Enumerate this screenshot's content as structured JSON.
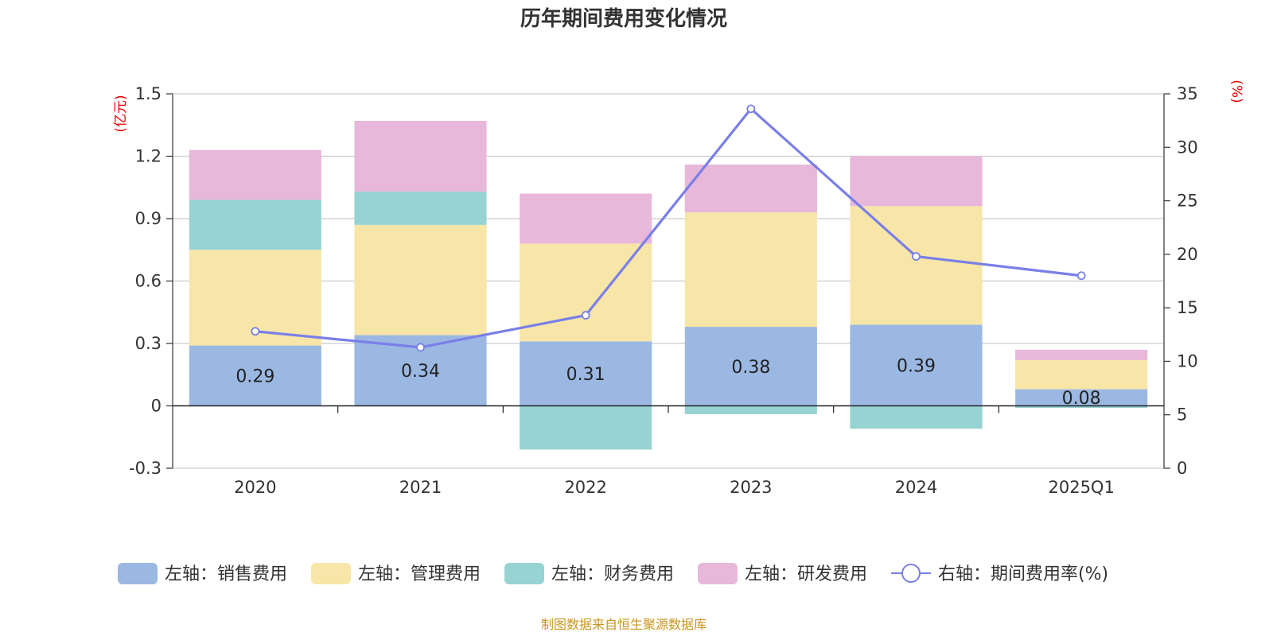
{
  "chart_data": {
    "type": "bar",
    "title": "历年期间费用变化情况",
    "categories": [
      "2020",
      "2021",
      "2022",
      "2023",
      "2024",
      "2025Q1"
    ],
    "left_axis": {
      "unit_label": "(亿元)",
      "ylim": [
        -0.3,
        1.5
      ],
      "ticks": [
        -0.3,
        0,
        0.3,
        0.6,
        0.9,
        1.2,
        1.5
      ],
      "tick_labels": [
        "-0.3",
        "0",
        "0.3",
        "0.6",
        "0.9",
        "1.2",
        "1.5"
      ]
    },
    "right_axis": {
      "unit_label": "(%)",
      "ylim": [
        0,
        35
      ],
      "ticks": [
        0,
        5,
        10,
        15,
        20,
        25,
        30,
        35
      ],
      "tick_labels": [
        "0",
        "5",
        "10",
        "15",
        "20",
        "25",
        "30",
        "35"
      ]
    },
    "series": [
      {
        "name": "左轴：销售费用",
        "kind": "bar",
        "axis": "left",
        "color": "#9bb8e2",
        "values": [
          0.29,
          0.34,
          0.31,
          0.38,
          0.39,
          0.08
        ],
        "labels": [
          "0.29",
          "0.34",
          "0.31",
          "0.38",
          "0.39",
          "0.08"
        ]
      },
      {
        "name": "左轴：管理费用",
        "kind": "bar",
        "axis": "left",
        "color": "#f7e6a8",
        "values": [
          0.46,
          0.53,
          0.47,
          0.55,
          0.57,
          0.14
        ]
      },
      {
        "name": "左轴：财务费用",
        "kind": "bar",
        "axis": "left",
        "color": "#97d3d3",
        "values": [
          0.24,
          0.16,
          -0.21,
          -0.04,
          -0.11,
          -0.01
        ]
      },
      {
        "name": "左轴：研发费用",
        "kind": "bar",
        "axis": "left",
        "color": "#e7b8d9",
        "values": [
          0.24,
          0.34,
          0.24,
          0.23,
          0.24,
          0.05
        ]
      },
      {
        "name": "右轴：期间费用率(%)",
        "kind": "line",
        "axis": "right",
        "color": "#7a7fe8",
        "values": [
          12.8,
          11.3,
          14.3,
          33.6,
          19.8,
          18.0
        ]
      }
    ],
    "grid": true,
    "legend_position": "bottom"
  },
  "footer": {
    "source": "制图数据来自恒生聚源数据库"
  }
}
